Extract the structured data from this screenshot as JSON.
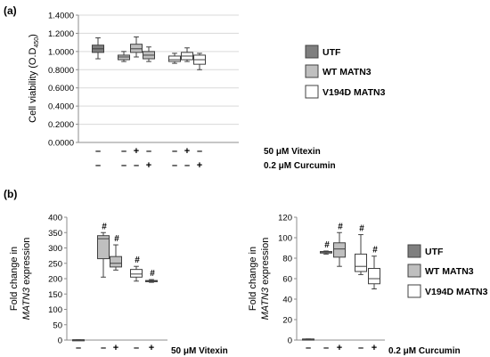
{
  "panels": [
    {
      "tag": "(a)"
    },
    {
      "tag": "(b)"
    }
  ],
  "legend": {
    "entries": [
      {
        "name": "UTF",
        "color": "#7f7f7f"
      },
      {
        "name": "WT MATN3",
        "color": "#bfbfbf"
      },
      {
        "name": "V194D MATN3",
        "color": "#ffffff"
      }
    ]
  },
  "chart_data": [
    {
      "type": "box",
      "panel": "(a)",
      "ylabel": "Cell viability (O.D",
      "ylabel_sub": "450",
      "ylabel_close": ")",
      "ylim": [
        0,
        1.4
      ],
      "yticks": [
        "0.0000",
        "0.2000",
        "0.4000",
        "0.6000",
        "0.8000",
        "1.0000",
        "1.2000",
        "1.4000"
      ],
      "ytick_values": [
        0,
        0.2,
        0.4,
        0.6,
        0.8,
        1.0,
        1.2,
        1.4
      ],
      "treatment_rows": [
        {
          "label": "50 μM  Vitexin",
          "signs": [
            "–",
            "–",
            "+",
            "–",
            "–",
            "+",
            "–"
          ]
        },
        {
          "label": "0.2 μM  Curcumin",
          "signs": [
            "–",
            "–",
            "–",
            "+",
            "–",
            "–",
            "+"
          ]
        }
      ],
      "boxes": [
        {
          "group": "UTF",
          "whisker_low": 0.92,
          "q1": 0.99,
          "median": 1.03,
          "q3": 1.07,
          "whisker_high": 1.15
        },
        {
          "group": "WT MATN3",
          "whisker_low": 0.89,
          "q1": 0.91,
          "median": 0.94,
          "q3": 0.96,
          "whisker_high": 1.0
        },
        {
          "group": "WT MATN3",
          "whisker_low": 0.94,
          "q1": 0.99,
          "median": 1.03,
          "q3": 1.08,
          "whisker_high": 1.16
        },
        {
          "group": "WT MATN3",
          "whisker_low": 0.89,
          "q1": 0.92,
          "median": 0.96,
          "q3": 1.0,
          "whisker_high": 1.05
        },
        {
          "group": "V194D MATN3",
          "whisker_low": 0.87,
          "q1": 0.89,
          "median": 0.91,
          "q3": 0.95,
          "whisker_high": 0.98
        },
        {
          "group": "V194D MATN3",
          "whisker_low": 0.89,
          "q1": 0.91,
          "median": 0.95,
          "q3": 0.99,
          "whisker_high": 1.04
        },
        {
          "group": "V194D MATN3",
          "whisker_low": 0.8,
          "q1": 0.86,
          "median": 0.91,
          "q3": 0.96,
          "whisker_high": 0.98
        }
      ]
    },
    {
      "type": "box",
      "panel": "(b)",
      "ylabel_line1": "Fold change in",
      "ylabel_gene": "MATN3",
      "ylabel_rest": " expression",
      "ylim": [
        0,
        400
      ],
      "yticks": [
        "0",
        "50",
        "100",
        "150",
        "200",
        "250",
        "300",
        "350",
        "400"
      ],
      "ytick_values": [
        0,
        50,
        100,
        150,
        200,
        250,
        300,
        350,
        400
      ],
      "treatment_rows": [
        {
          "label": "50 μM  Vitexin",
          "signs": [
            "–",
            "–",
            "+",
            "–",
            "+"
          ]
        }
      ],
      "significance": "#",
      "boxes": [
        {
          "group": "UTF",
          "whisker_low": 1,
          "q1": 1,
          "median": 1,
          "q3": 1,
          "whisker_high": 1,
          "mark": ""
        },
        {
          "group": "WT MATN3",
          "whisker_low": 205,
          "q1": 265,
          "median": 330,
          "q3": 340,
          "whisker_high": 350,
          "mark": "#"
        },
        {
          "group": "WT MATN3",
          "whisker_low": 228,
          "q1": 238,
          "median": 250,
          "q3": 272,
          "whisker_high": 310,
          "mark": "#"
        },
        {
          "group": "V194D MATN3",
          "whisker_low": 192,
          "q1": 205,
          "median": 215,
          "q3": 230,
          "whisker_high": 240,
          "mark": "#"
        },
        {
          "group": "V194D MATN3",
          "whisker_low": 188,
          "q1": 190,
          "median": 192,
          "q3": 194,
          "whisker_high": 197,
          "mark": "#"
        }
      ]
    },
    {
      "type": "box",
      "panel": "(b)",
      "ylabel_line1": "Fold change in",
      "ylabel_gene": "MATN3",
      "ylabel_rest": " expression",
      "ylim": [
        0,
        120
      ],
      "yticks": [
        "0",
        "20",
        "40",
        "60",
        "80",
        "100",
        "120"
      ],
      "ytick_values": [
        0,
        20,
        40,
        60,
        80,
        100,
        120
      ],
      "treatment_rows": [
        {
          "label": "0.2 μM  Curcumin",
          "signs": [
            "–",
            "–",
            "+",
            "–",
            "+"
          ]
        }
      ],
      "significance": "#",
      "boxes": [
        {
          "group": "UTF",
          "whisker_low": 1,
          "q1": 1,
          "median": 1,
          "q3": 1,
          "whisker_high": 1,
          "mark": ""
        },
        {
          "group": "WT MATN3",
          "whisker_low": 84,
          "q1": 85,
          "median": 86,
          "q3": 86.5,
          "whisker_high": 87,
          "mark": "#"
        },
        {
          "group": "WT MATN3",
          "whisker_low": 72,
          "q1": 81,
          "median": 89,
          "q3": 95,
          "whisker_high": 105,
          "mark": "#"
        },
        {
          "group": "V194D MATN3",
          "whisker_low": 64,
          "q1": 67,
          "median": 72,
          "q3": 84,
          "whisker_high": 103,
          "mark": "#"
        },
        {
          "group": "V194D MATN3",
          "whisker_low": 50,
          "q1": 55,
          "median": 60,
          "q3": 70,
          "whisker_high": 82,
          "mark": "#"
        }
      ]
    }
  ]
}
